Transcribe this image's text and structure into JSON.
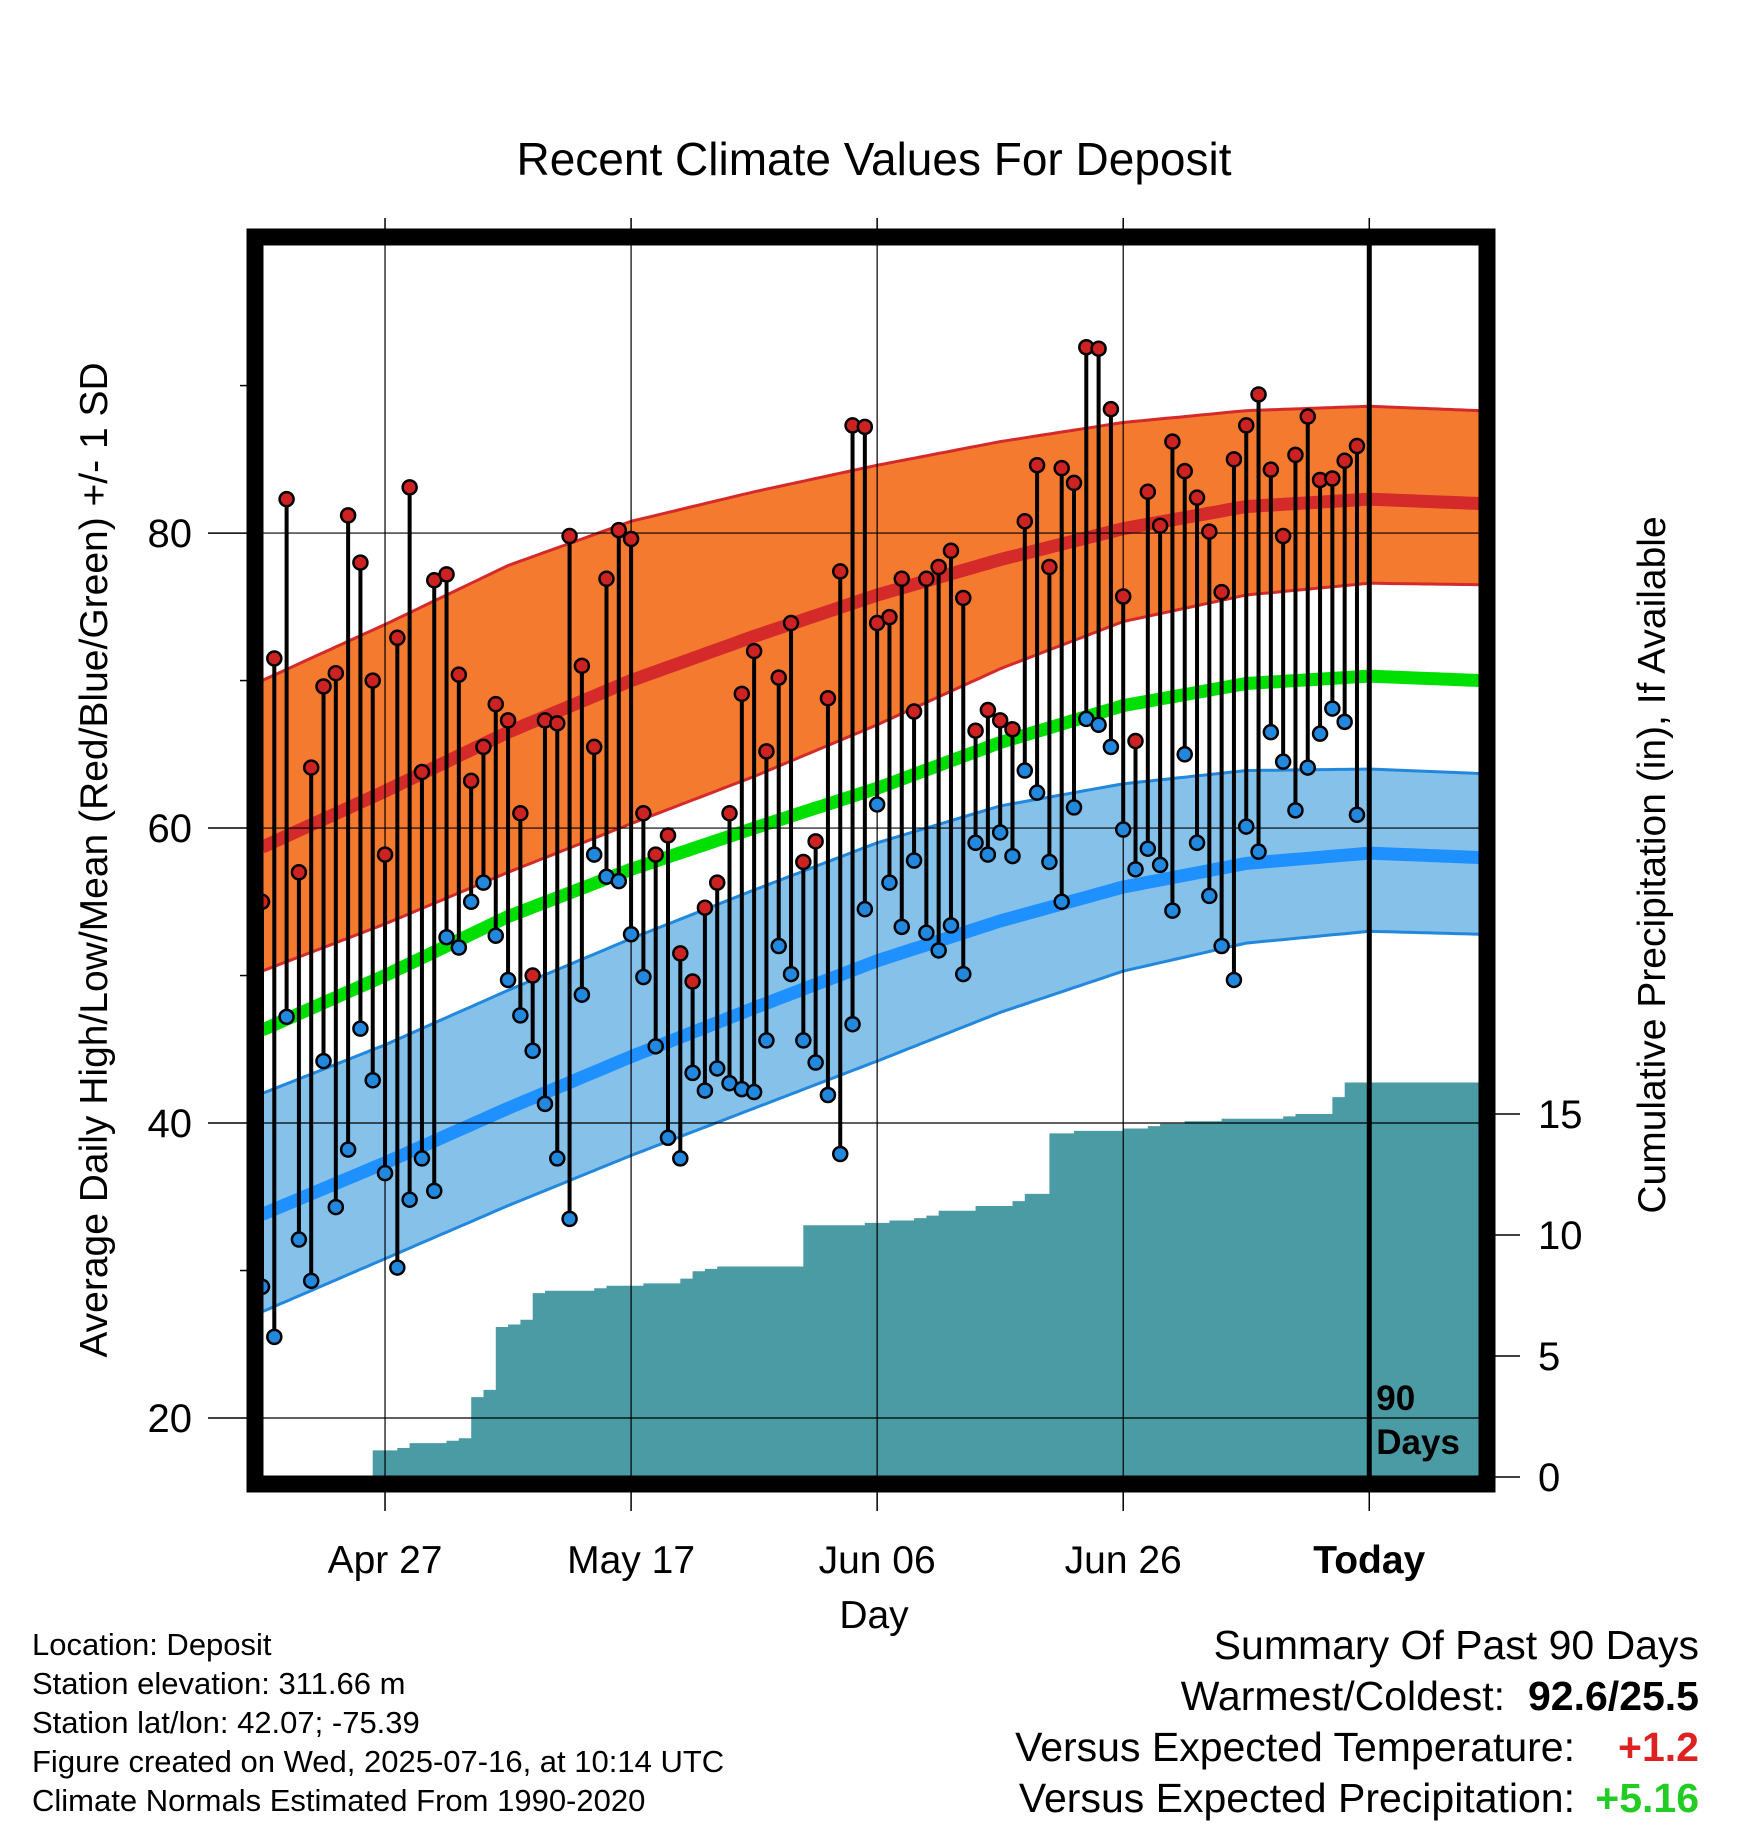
{
  "page": {
    "title": "Recent Climate Values For Deposit",
    "ylabel_left": "Average Daily High/Low/Mean (Red/Blue/Green) +/- 1 SD",
    "ylabel_right": "Cumulative Precipitation (in), If Available",
    "xlabel": "Day",
    "today_marker": "90\nDays",
    "today_label": "Today"
  },
  "info": {
    "location": "Location: Deposit",
    "elevation": "Station elevation: 311.66 m",
    "latlon": "Station lat/lon: 42.07; -75.39",
    "created": "Figure created on Wed, 2025-07-16, at 10:14 UTC",
    "normals": "Climate Normals Estimated From 1990-2020"
  },
  "summary": {
    "heading": "Summary Of Past 90 Days",
    "warm_cold_label": "Warmest/Coldest:",
    "warm_cold_value": "92.6/25.5",
    "temp_label": "Versus Expected Temperature:",
    "temp_value": "+1.2",
    "precip_label": "Versus Expected Precipitation:",
    "precip_value": "+5.16"
  },
  "colors": {
    "high_band": "#f47a30",
    "high_line": "#d42a2a",
    "low_band": "#85c1e9",
    "low_line": "#1e90ff",
    "mean_line": "#00e000",
    "precip_fill": "#4a9ba4",
    "high_dot": "#cc2222",
    "low_dot": "#2288dd",
    "temp_delta": "#dd2222",
    "precip_delta": "#22cc22"
  },
  "chart_data": {
    "type": "line",
    "x_axis": {
      "start_date": "2025-04-17",
      "end_date": "2025-07-16",
      "extra_days_after_today": 9,
      "tick_labels": [
        "Apr 27",
        "May 17",
        "Jun 06",
        "Jun 26",
        "Today"
      ],
      "tick_days": [
        "2025-04-27",
        "2025-05-17",
        "2025-06-06",
        "2025-06-26",
        "2025-07-16"
      ]
    },
    "y_left": {
      "label": "Average Daily High/Low/Mean (Red/Blue/Green) +/- 1 SD",
      "min": 16.0,
      "max": 99.6,
      "ticks": [
        20,
        40,
        60,
        80
      ],
      "minor_ticks": [
        30,
        50,
        70,
        90
      ]
    },
    "y_right": {
      "label": "Cumulative Precipitation (in), If Available",
      "min": 0,
      "max": 15,
      "ticks": [
        0,
        5,
        10,
        15
      ]
    },
    "grid": true,
    "normals": {
      "high_mean": [
        [
          0,
          58.7
        ],
        [
          10,
          62.5
        ],
        [
          20,
          66.5
        ],
        [
          30,
          70.0
        ],
        [
          40,
          73.0
        ],
        [
          50,
          75.8
        ],
        [
          60,
          78.2
        ],
        [
          70,
          80.3
        ],
        [
          80,
          81.8
        ],
        [
          90,
          82.3
        ],
        [
          99,
          82.0
        ]
      ],
      "high_sd_upper": [
        [
          0,
          70.0
        ],
        [
          10,
          73.8
        ],
        [
          20,
          77.8
        ],
        [
          30,
          80.8
        ],
        [
          40,
          82.8
        ],
        [
          50,
          84.6
        ],
        [
          60,
          86.2
        ],
        [
          70,
          87.5
        ],
        [
          80,
          88.3
        ],
        [
          90,
          88.6
        ],
        [
          99,
          88.3
        ]
      ],
      "high_sd_lower": [
        [
          0,
          50.3
        ],
        [
          10,
          53.5
        ],
        [
          20,
          57.0
        ],
        [
          30,
          60.3
        ],
        [
          40,
          63.5
        ],
        [
          50,
          67.0
        ],
        [
          60,
          70.8
        ],
        [
          70,
          74.0
        ],
        [
          80,
          75.8
        ],
        [
          90,
          76.6
        ],
        [
          99,
          76.5
        ]
      ],
      "mean": [
        [
          0,
          46.3
        ],
        [
          10,
          50.0
        ],
        [
          20,
          54.0
        ],
        [
          30,
          57.2
        ],
        [
          40,
          60.0
        ],
        [
          50,
          62.7
        ],
        [
          60,
          65.8
        ],
        [
          70,
          68.3
        ],
        [
          80,
          69.8
        ],
        [
          90,
          70.3
        ],
        [
          99,
          70.0
        ]
      ],
      "low_mean": [
        [
          0,
          33.8
        ],
        [
          10,
          37.3
        ],
        [
          20,
          41.0
        ],
        [
          30,
          44.5
        ],
        [
          40,
          47.8
        ],
        [
          50,
          51.0
        ],
        [
          60,
          53.7
        ],
        [
          70,
          56.0
        ],
        [
          80,
          57.6
        ],
        [
          90,
          58.3
        ],
        [
          99,
          58.0
        ]
      ],
      "low_sd_upper": [
        [
          0,
          42.0
        ],
        [
          10,
          45.3
        ],
        [
          20,
          49.0
        ],
        [
          30,
          52.5
        ],
        [
          40,
          55.8
        ],
        [
          50,
          59.0
        ],
        [
          60,
          61.5
        ],
        [
          70,
          63.0
        ],
        [
          80,
          63.9
        ],
        [
          90,
          64.0
        ],
        [
          99,
          63.7
        ]
      ],
      "low_sd_lower": [
        [
          0,
          27.2
        ],
        [
          10,
          30.8
        ],
        [
          20,
          34.4
        ],
        [
          30,
          37.8
        ],
        [
          40,
          41.0
        ],
        [
          50,
          44.2
        ],
        [
          60,
          47.5
        ],
        [
          70,
          50.3
        ],
        [
          80,
          52.2
        ],
        [
          90,
          53.0
        ],
        [
          99,
          52.8
        ]
      ]
    },
    "series": [
      {
        "name": "High",
        "values": [
          55.0,
          71.5,
          82.3,
          57.0,
          64.1,
          69.6,
          70.5,
          81.2,
          78.0,
          70.0,
          58.2,
          72.9,
          83.1,
          63.8,
          76.8,
          77.2,
          70.4,
          63.2,
          65.5,
          68.4,
          67.3,
          61.0,
          50.0,
          67.3,
          67.1,
          79.8,
          71.0,
          65.5,
          76.9,
          80.2,
          79.6,
          61.0,
          58.2,
          59.5,
          51.5,
          49.6,
          54.6,
          56.3,
          61.0,
          69.1,
          72.0,
          65.2,
          70.2,
          73.9,
          57.7,
          59.1,
          68.8,
          77.4,
          87.3,
          87.2,
          73.9,
          74.3,
          76.9,
          67.9,
          76.9,
          77.7,
          78.8,
          75.6,
          66.6,
          68.0,
          67.3,
          66.7,
          80.8,
          84.6,
          77.7,
          84.4,
          83.4,
          92.6,
          92.5,
          88.4,
          75.7,
          65.9,
          82.8,
          80.5,
          86.2,
          84.2,
          82.4,
          80.1,
          76.0,
          85.0,
          87.3,
          89.4,
          84.3,
          79.8,
          85.3,
          87.9,
          83.6,
          83.7,
          84.9,
          85.9
        ]
      },
      {
        "name": "Low",
        "values": [
          28.9,
          25.5,
          47.2,
          32.1,
          29.3,
          44.2,
          34.3,
          38.2,
          46.4,
          42.9,
          36.6,
          30.2,
          34.8,
          37.6,
          35.4,
          52.6,
          51.9,
          55.0,
          56.3,
          52.7,
          49.7,
          47.3,
          44.9,
          41.3,
          37.6,
          33.5,
          48.7,
          58.2,
          56.7,
          56.4,
          52.8,
          49.9,
          45.2,
          39.0,
          37.6,
          43.4,
          42.2,
          43.7,
          42.7,
          42.3,
          42.1,
          45.6,
          52.0,
          50.1,
          45.6,
          44.1,
          41.9,
          37.9,
          46.7,
          54.5,
          61.6,
          56.3,
          53.3,
          57.8,
          52.9,
          51.7,
          53.4,
          50.1,
          59.0,
          58.2,
          59.7,
          58.1,
          63.9,
          62.4,
          57.7,
          55.0,
          61.4,
          67.4,
          67.0,
          65.5,
          59.9,
          57.2,
          58.6,
          57.5,
          54.4,
          65.0,
          59.0,
          55.4,
          52.0,
          49.7,
          60.1,
          58.4,
          66.5,
          64.5,
          61.2,
          64.1,
          66.4,
          68.1,
          67.2,
          60.9
        ]
      },
      {
        "name": "Cumulative Precipitation",
        "values": [
          0,
          0,
          0,
          0,
          0,
          0,
          0,
          0,
          0,
          1.1,
          1.1,
          1.2,
          1.4,
          1.4,
          1.4,
          1.5,
          1.6,
          3.3,
          3.6,
          6.2,
          6.3,
          6.5,
          7.6,
          7.7,
          7.7,
          7.7,
          7.7,
          7.8,
          7.9,
          7.9,
          7.9,
          8.0,
          8.0,
          8.0,
          8.2,
          8.5,
          8.6,
          8.7,
          8.7,
          8.7,
          8.7,
          8.7,
          8.7,
          8.7,
          10.4,
          10.4,
          10.4,
          10.4,
          10.4,
          10.5,
          10.5,
          10.6,
          10.6,
          10.7,
          10.8,
          11.0,
          11.0,
          11.0,
          11.2,
          11.2,
          11.2,
          11.4,
          11.7,
          11.7,
          14.2,
          14.2,
          14.3,
          14.3,
          14.3,
          14.3,
          14.4,
          14.4,
          14.5,
          14.6,
          14.6,
          14.7,
          14.7,
          14.7,
          14.8,
          14.8,
          14.8,
          14.8,
          14.8,
          14.9,
          15.0,
          15.0,
          15.0,
          15.7,
          16.3,
          16.3
        ]
      }
    ]
  }
}
